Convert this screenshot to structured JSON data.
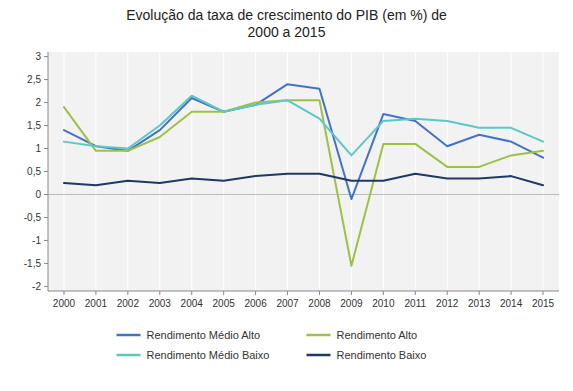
{
  "chart_data": {
    "type": "line",
    "title": "Evolução da taxa de crescimento do PIB (em %) de\n2000 a 2015",
    "x": [
      2000,
      2001,
      2002,
      2003,
      2004,
      2005,
      2006,
      2007,
      2008,
      2009,
      2010,
      2011,
      2012,
      2013,
      2014,
      2015
    ],
    "series": [
      {
        "name": "Rendimento Médio Alto",
        "color": "#4472C4",
        "values": [
          1.4,
          1.05,
          0.95,
          1.4,
          2.1,
          1.8,
          1.95,
          2.4,
          2.3,
          -0.1,
          1.75,
          1.6,
          1.05,
          1.3,
          1.15,
          0.8
        ]
      },
      {
        "name": "Rendimento Alto",
        "color": "#9DC243",
        "values": [
          1.9,
          0.95,
          0.95,
          1.25,
          1.8,
          1.8,
          2.0,
          2.05,
          2.05,
          -1.55,
          1.1,
          1.1,
          0.6,
          0.6,
          0.85,
          0.95
        ]
      },
      {
        "name": "Rendimento Médio Baixo",
        "color": "#5BC8C8",
        "values": [
          1.15,
          1.05,
          1.0,
          1.5,
          2.15,
          1.8,
          1.95,
          2.05,
          1.65,
          0.85,
          1.6,
          1.65,
          1.6,
          1.45,
          1.45,
          1.15
        ]
      },
      {
        "name": "Rendimento Baixo",
        "color": "#1F3864",
        "values": [
          0.25,
          0.2,
          0.3,
          0.25,
          0.35,
          0.3,
          0.4,
          0.45,
          0.45,
          0.3,
          0.3,
          0.45,
          0.35,
          0.35,
          0.4,
          0.2
        ]
      }
    ],
    "xlim": [
      1999.5,
      2015.5
    ],
    "xticks": [
      2000,
      2001,
      2002,
      2003,
      2004,
      2005,
      2006,
      2007,
      2008,
      2009,
      2010,
      2011,
      2012,
      2013,
      2014,
      2015
    ],
    "ylim": [
      -2.1,
      3.1
    ],
    "yticks": [
      -2,
      {
        "value": -1.5,
        "label": "-1,5"
      },
      -1,
      {
        "value": -0.5,
        "label": "-0,5"
      },
      0,
      {
        "value": 0.5,
        "label": "0,5"
      },
      1,
      {
        "value": 1.5,
        "label": "1,5"
      },
      2,
      {
        "value": 2.5,
        "label": "2,5"
      },
      3
    ],
    "grid": true,
    "legend": "bottom"
  }
}
